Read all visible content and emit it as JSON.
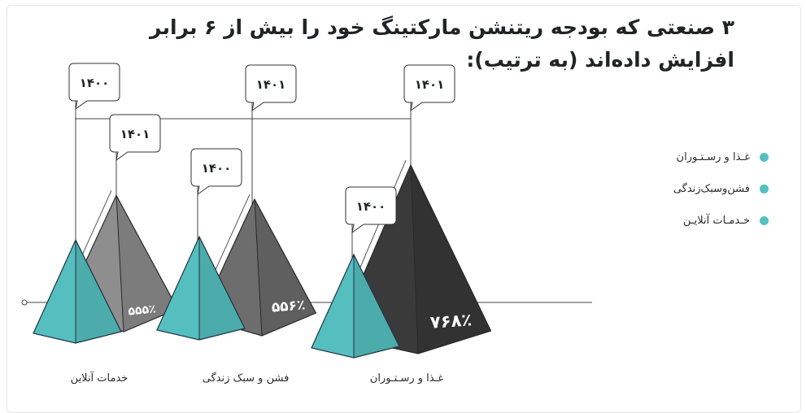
{
  "title": "۳ صنعتی که بودجه ریتنشن مارکتینگ خود را بیش از ۶ برابر افزایش داده‌اند (به ترتیب):",
  "legend": [
    {
      "label": "غـذا و رسـتـوران",
      "color": "#55bfbf"
    },
    {
      "label": "فشن‌وسبک‌زندگی",
      "color": "#55bfbf"
    },
    {
      "label": "خـدمـات آنلایـن",
      "color": "#55bfbf"
    }
  ],
  "chart_data": {
    "type": "bar",
    "categories": [
      "خدمات آنلاین",
      "فشن و سبک زندگی",
      "غـذا و رسـتـوران"
    ],
    "series": [
      {
        "year_label": "۱۴۰۰",
        "values": [
          100,
          100,
          100
        ],
        "color": "#55bfbf"
      },
      {
        "year_label": "۱۴۰۱",
        "values": [
          555,
          556,
          768
        ],
        "color_by_category": [
          "#8e8e8e",
          "#6d6d6d",
          "#3a3a3a"
        ]
      }
    ],
    "value_labels": [
      "۵۵۵٪",
      "۵۵۶٪",
      "۷۶۸٪"
    ],
    "base_year_labels": [
      "۱۴۰۰",
      "۱۴۰۰",
      "۱۴۰۰"
    ],
    "growth_year_labels": [
      "۱۴۰۱",
      "۱۴۰۱",
      "۱۴۰۱"
    ]
  }
}
